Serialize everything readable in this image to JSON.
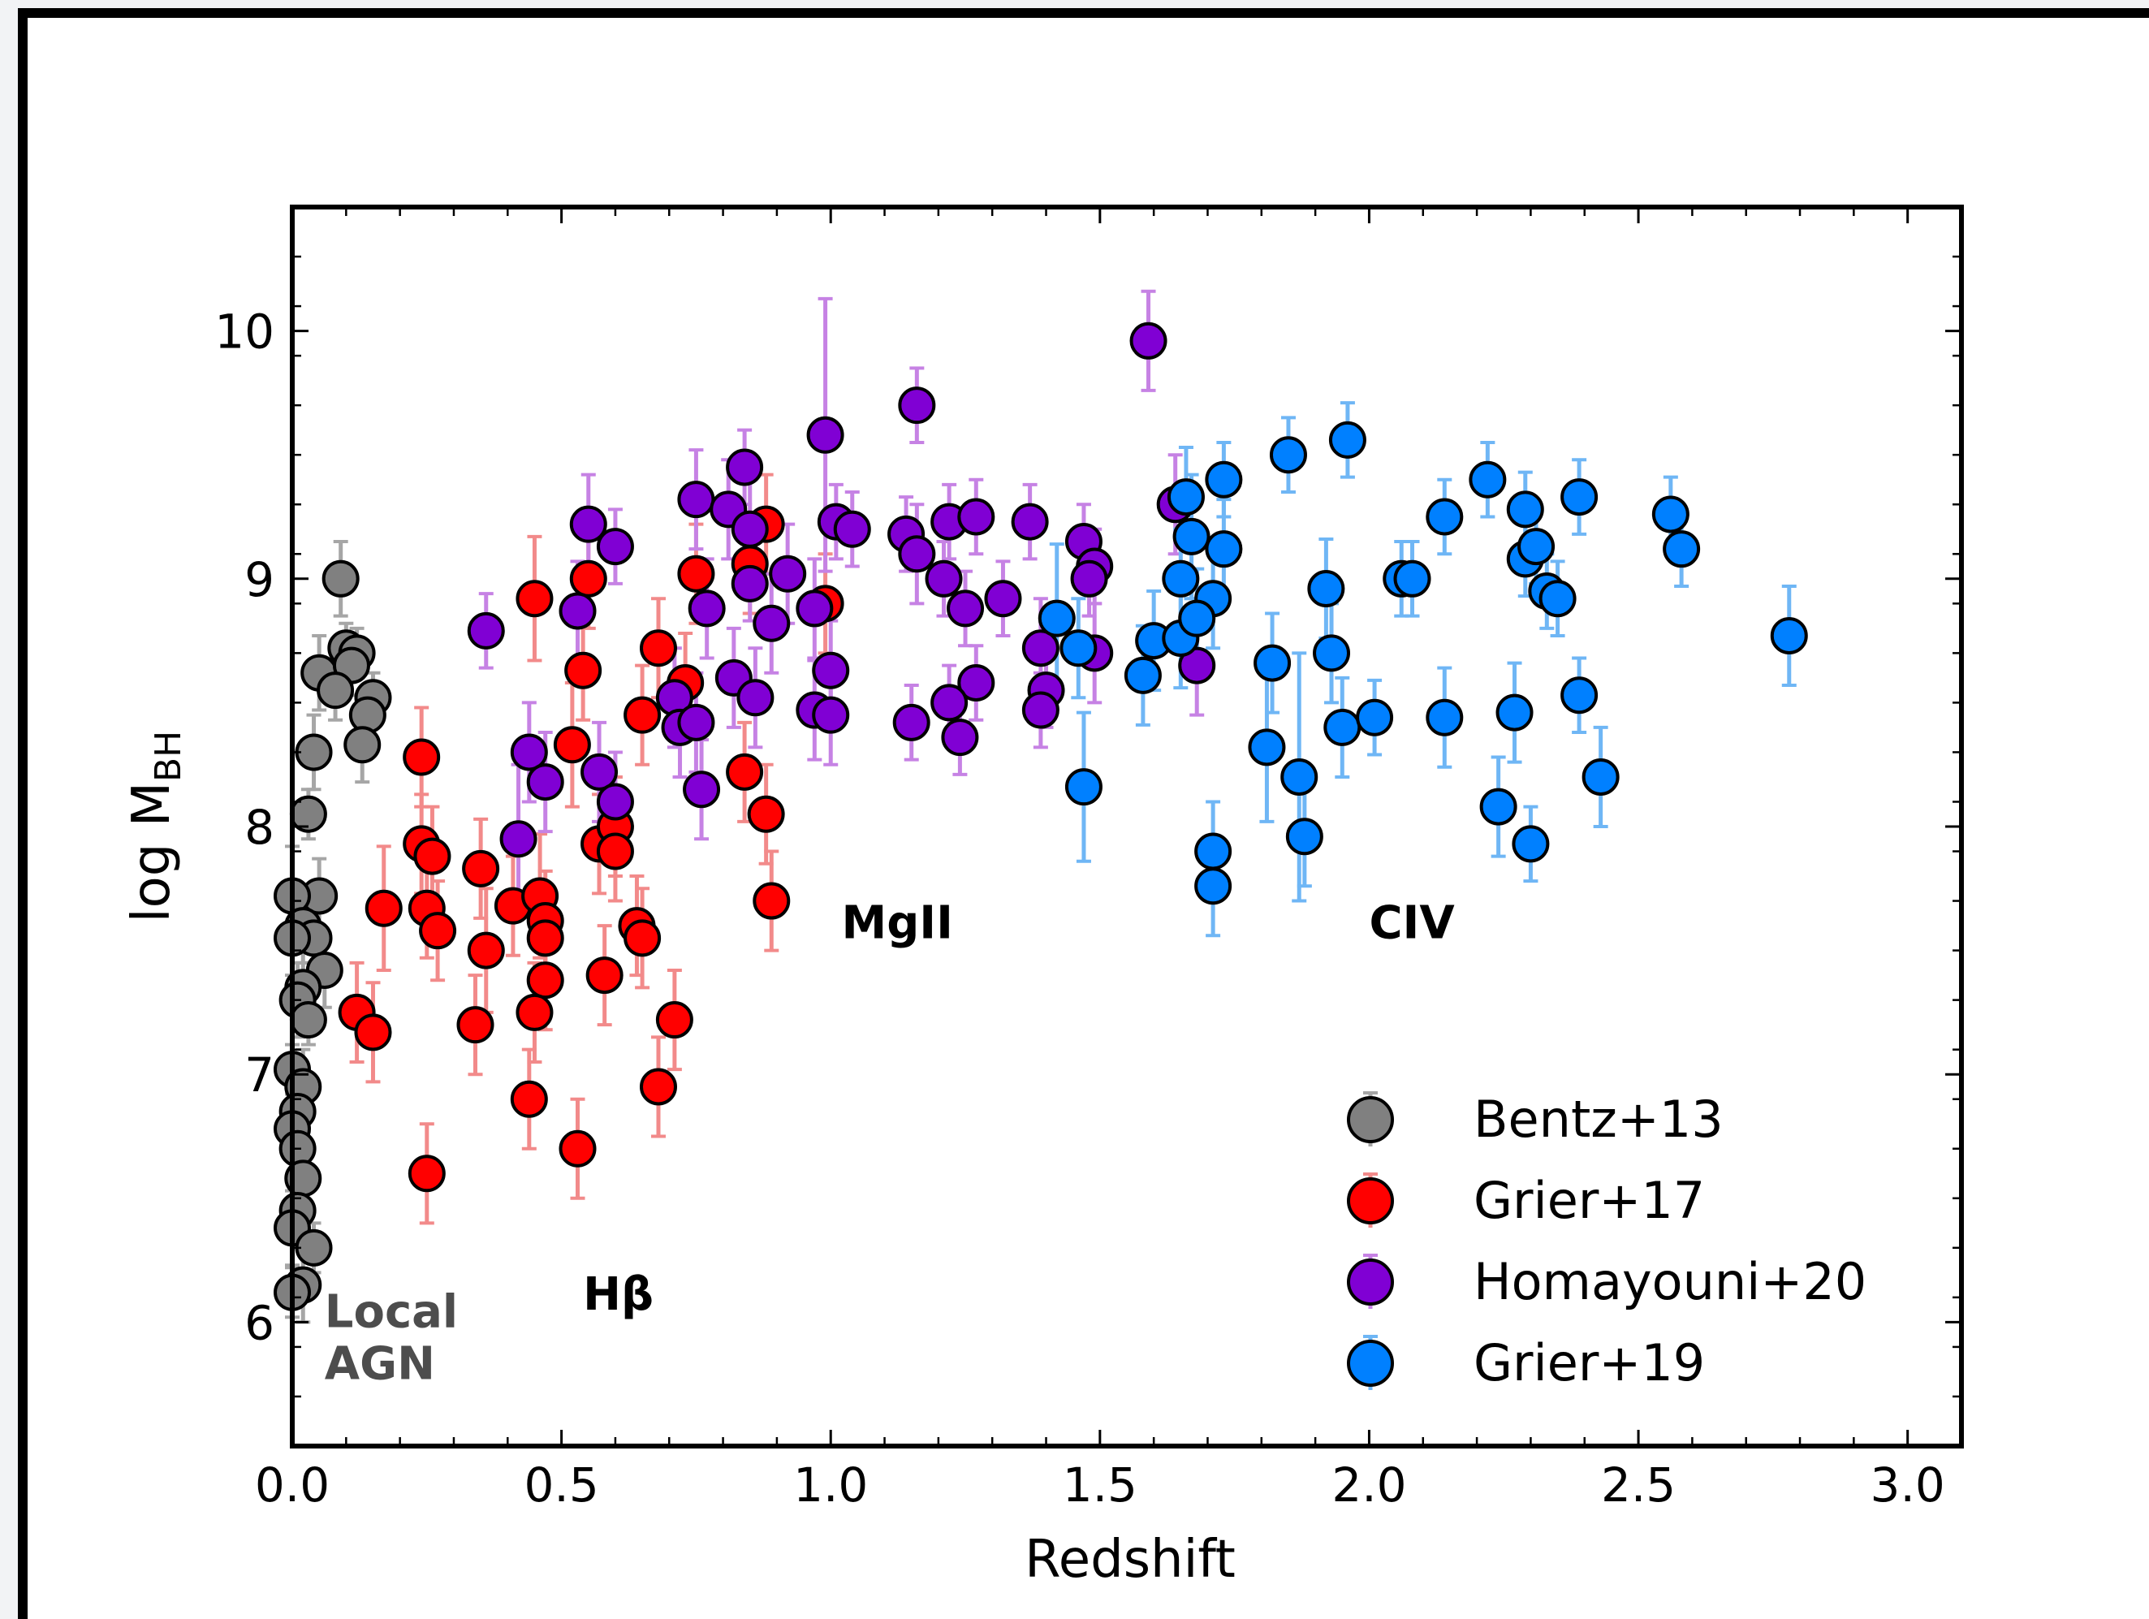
{
  "chart_data": {
    "type": "scatter",
    "title": "",
    "xlabel": "Redshift",
    "ylabel_main": "log M",
    "ylabel_sub": "BH",
    "xlim": [
      0.0,
      3.1
    ],
    "ylim": [
      5.5,
      10.5
    ],
    "xticks": [
      0.0,
      0.5,
      1.0,
      1.5,
      2.0,
      2.5,
      3.0
    ],
    "xtick_labels": [
      "0.0",
      "0.5",
      "1.0",
      "1.5",
      "2.0",
      "2.5",
      "3.0"
    ],
    "yticks": [
      6,
      7,
      8,
      9,
      10
    ],
    "ytick_labels": [
      "6",
      "7",
      "8",
      "9",
      "10"
    ],
    "grid": false,
    "legend_position": "lower-right",
    "annotations": [
      {
        "text": "Local",
        "x": 0.06,
        "y": 5.98,
        "color": "#4d4d4d",
        "bold": true
      },
      {
        "text": "AGN",
        "x": 0.06,
        "y": 5.77,
        "color": "#4d4d4d",
        "bold": true
      },
      {
        "text": "Hβ",
        "x": 0.54,
        "y": 6.05,
        "color": "#000000",
        "bold": true
      },
      {
        "text": "MgII",
        "x": 1.02,
        "y": 7.55,
        "color": "#000000",
        "bold": true
      },
      {
        "text": "CIV",
        "x": 2.0,
        "y": 7.55,
        "color": "#000000",
        "bold": true
      }
    ],
    "series": [
      {
        "name": "Bentz+13",
        "color": "#808080",
        "errcolor": "#a6a6a6",
        "points": [
          [
            0.09,
            9.0,
            0.15
          ],
          [
            0.1,
            8.72,
            0.1
          ],
          [
            0.12,
            8.7,
            0.1
          ],
          [
            0.05,
            8.62,
            0.15
          ],
          [
            0.11,
            8.65,
            0.12
          ],
          [
            0.08,
            8.55,
            0.12
          ],
          [
            0.15,
            8.52,
            0.1
          ],
          [
            0.14,
            8.45,
            0.1
          ],
          [
            0.13,
            8.33,
            0.15
          ],
          [
            0.04,
            8.3,
            0.15
          ],
          [
            0.03,
            8.05,
            0.1
          ],
          [
            0.05,
            7.72,
            0.15
          ],
          [
            0.0,
            7.72,
            0.2
          ],
          [
            0.02,
            7.6,
            0.15
          ],
          [
            0.04,
            7.55,
            0.1
          ],
          [
            0.0,
            7.55,
            0.15
          ],
          [
            0.06,
            7.42,
            0.15
          ],
          [
            0.02,
            7.35,
            0.1
          ],
          [
            0.01,
            7.3,
            0.15
          ],
          [
            0.03,
            7.22,
            0.1
          ],
          [
            0.0,
            7.02,
            0.1
          ],
          [
            0.02,
            6.95,
            0.15
          ],
          [
            0.01,
            6.85,
            0.1
          ],
          [
            0.0,
            6.78,
            0.1
          ],
          [
            0.01,
            6.7,
            0.15
          ],
          [
            0.02,
            6.58,
            0.1
          ],
          [
            0.01,
            6.45,
            0.1
          ],
          [
            0.0,
            6.38,
            0.15
          ],
          [
            0.04,
            6.3,
            0.1
          ],
          [
            0.02,
            6.15,
            0.15
          ],
          [
            0.0,
            6.12,
            0.1
          ]
        ]
      },
      {
        "name": "Grier+17",
        "color": "#ff0000",
        "errcolor": "#f28a8a",
        "points": [
          [
            0.45,
            8.92,
            0.25
          ],
          [
            0.55,
            9.0,
            0.2
          ],
          [
            0.54,
            8.63,
            0.2
          ],
          [
            0.52,
            8.33,
            0.25
          ],
          [
            0.68,
            8.72,
            0.2
          ],
          [
            0.73,
            8.58,
            0.2
          ],
          [
            0.75,
            9.02,
            0.2
          ],
          [
            0.85,
            9.06,
            0.2
          ],
          [
            0.88,
            9.22,
            0.2
          ],
          [
            0.99,
            8.9,
            0.2
          ],
          [
            0.65,
            8.45,
            0.2
          ],
          [
            0.84,
            8.22,
            0.2
          ],
          [
            0.88,
            8.05,
            0.2
          ],
          [
            0.89,
            7.7,
            0.2
          ],
          [
            0.24,
            8.28,
            0.2
          ],
          [
            0.24,
            7.93,
            0.2
          ],
          [
            0.26,
            7.88,
            0.2
          ],
          [
            0.17,
            7.67,
            0.25
          ],
          [
            0.25,
            7.67,
            0.2
          ],
          [
            0.27,
            7.58,
            0.2
          ],
          [
            0.35,
            7.83,
            0.2
          ],
          [
            0.36,
            7.5,
            0.25
          ],
          [
            0.41,
            7.68,
            0.2
          ],
          [
            0.46,
            7.72,
            0.25
          ],
          [
            0.47,
            7.62,
            0.2
          ],
          [
            0.47,
            7.55,
            0.2
          ],
          [
            0.47,
            7.38,
            0.2
          ],
          [
            0.45,
            7.25,
            0.2
          ],
          [
            0.57,
            7.93,
            0.2
          ],
          [
            0.6,
            8.0,
            0.2
          ],
          [
            0.6,
            7.9,
            0.2
          ],
          [
            0.64,
            7.6,
            0.2
          ],
          [
            0.65,
            7.55,
            0.2
          ],
          [
            0.58,
            7.4,
            0.2
          ],
          [
            0.71,
            7.22,
            0.2
          ],
          [
            0.68,
            6.95,
            0.2
          ],
          [
            0.12,
            7.25,
            0.2
          ],
          [
            0.15,
            7.17,
            0.2
          ],
          [
            0.34,
            7.2,
            0.2
          ],
          [
            0.44,
            6.9,
            0.2
          ],
          [
            0.53,
            6.7,
            0.2
          ],
          [
            0.25,
            6.6,
            0.2
          ]
        ]
      },
      {
        "name": "Homayouni+20",
        "color": "#8000d4",
        "errcolor": "#c682e4",
        "points": [
          [
            1.59,
            9.96,
            0.2
          ],
          [
            1.16,
            9.7,
            0.15
          ],
          [
            0.99,
            9.58,
            0.55
          ],
          [
            0.84,
            9.45,
            0.15
          ],
          [
            0.75,
            9.32,
            0.2
          ],
          [
            0.81,
            9.28,
            0.2
          ],
          [
            0.85,
            9.2,
            0.2
          ],
          [
            0.55,
            9.22,
            0.2
          ],
          [
            0.6,
            9.13,
            0.15
          ],
          [
            1.01,
            9.23,
            0.15
          ],
          [
            1.04,
            9.2,
            0.15
          ],
          [
            1.14,
            9.18,
            0.15
          ],
          [
            1.16,
            9.1,
            0.2
          ],
          [
            1.22,
            9.23,
            0.15
          ],
          [
            1.27,
            9.25,
            0.15
          ],
          [
            1.37,
            9.23,
            0.15
          ],
          [
            1.47,
            9.15,
            0.15
          ],
          [
            1.49,
            9.05,
            0.15
          ],
          [
            1.48,
            9.0,
            0.15
          ],
          [
            1.64,
            9.3,
            0.2
          ],
          [
            0.85,
            8.98,
            0.15
          ],
          [
            0.92,
            9.02,
            0.2
          ],
          [
            0.89,
            8.82,
            0.2
          ],
          [
            0.77,
            8.88,
            0.2
          ],
          [
            0.97,
            8.88,
            0.2
          ],
          [
            1.21,
            9.0,
            0.15
          ],
          [
            1.25,
            8.88,
            0.15
          ],
          [
            1.32,
            8.92,
            0.15
          ],
          [
            1.39,
            8.72,
            0.2
          ],
          [
            1.49,
            8.7,
            0.2
          ],
          [
            1.68,
            8.65,
            0.2
          ],
          [
            1.27,
            8.58,
            0.15
          ],
          [
            1.4,
            8.55,
            0.15
          ],
          [
            1.39,
            8.47,
            0.15
          ],
          [
            1.22,
            8.5,
            0.15
          ],
          [
            1.24,
            8.36,
            0.15
          ],
          [
            1.15,
            8.42,
            0.15
          ],
          [
            1.0,
            8.63,
            0.2
          ],
          [
            0.97,
            8.47,
            0.2
          ],
          [
            1.0,
            8.45,
            0.2
          ],
          [
            0.82,
            8.6,
            0.2
          ],
          [
            0.86,
            8.52,
            0.2
          ],
          [
            0.71,
            8.52,
            0.2
          ],
          [
            0.72,
            8.4,
            0.2
          ],
          [
            0.75,
            8.42,
            0.2
          ],
          [
            0.36,
            8.79,
            0.15
          ],
          [
            0.53,
            8.87,
            0.2
          ],
          [
            0.44,
            8.3,
            0.2
          ],
          [
            0.47,
            8.18,
            0.2
          ],
          [
            0.57,
            8.22,
            0.2
          ],
          [
            0.6,
            8.1,
            0.2
          ],
          [
            0.42,
            7.95,
            0.3
          ],
          [
            0.76,
            8.15,
            0.2
          ]
        ]
      },
      {
        "name": "Grier+19",
        "color": "#0080ff",
        "errcolor": "#6fb6f5",
        "points": [
          [
            1.96,
            9.56,
            0.15
          ],
          [
            1.85,
            9.5,
            0.15
          ],
          [
            1.66,
            9.33,
            0.2
          ],
          [
            1.73,
            9.4,
            0.15
          ],
          [
            2.22,
            9.4,
            0.15
          ],
          [
            2.14,
            9.25,
            0.15
          ],
          [
            2.29,
            9.28,
            0.15
          ],
          [
            2.39,
            9.33,
            0.15
          ],
          [
            2.56,
            9.26,
            0.15
          ],
          [
            2.58,
            9.12,
            0.15
          ],
          [
            1.67,
            9.17,
            0.25
          ],
          [
            1.73,
            9.12,
            0.2
          ],
          [
            1.65,
            9.0,
            0.2
          ],
          [
            1.71,
            8.92,
            0.2
          ],
          [
            1.92,
            8.96,
            0.2
          ],
          [
            2.06,
            9.0,
            0.15
          ],
          [
            2.08,
            9.0,
            0.15
          ],
          [
            2.29,
            9.08,
            0.15
          ],
          [
            2.31,
            9.13,
            0.15
          ],
          [
            2.33,
            8.95,
            0.15
          ],
          [
            2.35,
            8.92,
            0.15
          ],
          [
            1.42,
            8.84,
            0.3
          ],
          [
            1.46,
            8.72,
            0.2
          ],
          [
            1.6,
            8.75,
            0.2
          ],
          [
            1.65,
            8.76,
            0.2
          ],
          [
            1.68,
            8.84,
            0.2
          ],
          [
            1.82,
            8.66,
            0.2
          ],
          [
            1.93,
            8.7,
            0.2
          ],
          [
            1.58,
            8.61,
            0.2
          ],
          [
            1.95,
            8.4,
            0.2
          ],
          [
            2.01,
            8.44,
            0.15
          ],
          [
            2.14,
            8.44,
            0.2
          ],
          [
            2.27,
            8.46,
            0.2
          ],
          [
            2.39,
            8.53,
            0.15
          ],
          [
            1.81,
            8.32,
            0.3
          ],
          [
            1.87,
            8.2,
            0.5
          ],
          [
            2.43,
            8.2,
            0.2
          ],
          [
            2.24,
            8.08,
            0.2
          ],
          [
            1.47,
            8.16,
            0.3
          ],
          [
            1.88,
            7.96,
            0.2
          ],
          [
            2.3,
            7.93,
            0.15
          ],
          [
            1.71,
            7.9,
            0.2
          ],
          [
            1.71,
            7.76,
            0.2
          ],
          [
            2.78,
            8.77,
            0.2
          ]
        ]
      }
    ]
  }
}
